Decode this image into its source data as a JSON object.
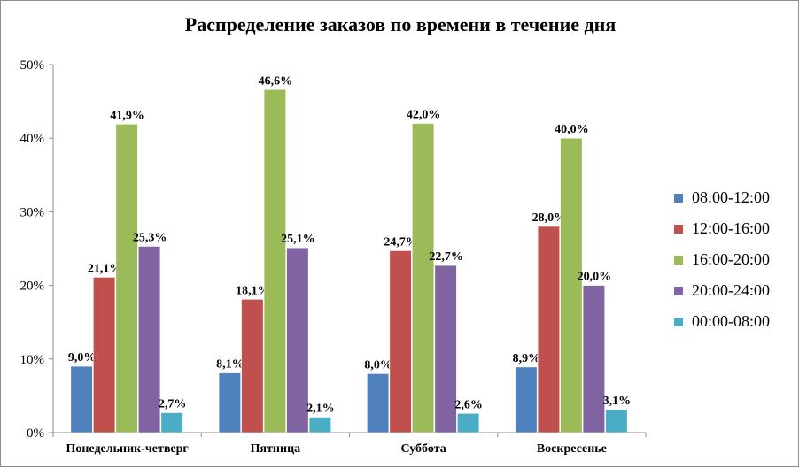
{
  "chart_data": {
    "type": "bar",
    "title": "Распределение заказов по времени в течение дня",
    "xlabel": "",
    "ylabel": "",
    "categories": [
      "Понедельник-четверг",
      "Пятница",
      "Суббота",
      "Воскресенье"
    ],
    "series": [
      {
        "name": "08:00-12:00",
        "color": "#4f81bd",
        "values": [
          9.0,
          8.1,
          8.0,
          8.9
        ],
        "labels": [
          "9,0%",
          "8,1%",
          "8,0%",
          "8,9%"
        ]
      },
      {
        "name": "12:00-16:00",
        "color": "#c0504d",
        "values": [
          21.1,
          18.1,
          24.7,
          28.0
        ],
        "labels": [
          "21,1%",
          "18,1%",
          "24,7%",
          "28,0%"
        ]
      },
      {
        "name": "16:00-20:00",
        "color": "#9bbb59",
        "values": [
          41.9,
          46.6,
          42.0,
          40.0
        ],
        "labels": [
          "41,9%",
          "46,6%",
          "42,0%",
          "40,0%"
        ]
      },
      {
        "name": "20:00-24:00",
        "color": "#8064a2",
        "values": [
          25.3,
          25.1,
          22.7,
          20.0
        ],
        "labels": [
          "25,3%",
          "25,1%",
          "22,7%",
          "20,0%"
        ]
      },
      {
        "name": "00:00-08:00",
        "color": "#4bacc6",
        "values": [
          2.7,
          2.1,
          2.6,
          3.1
        ],
        "labels": [
          "2,7%",
          "2,1%",
          "2,6%",
          "3,1%"
        ]
      }
    ],
    "ylim": [
      0,
      50
    ],
    "yticks": [
      0,
      10,
      20,
      30,
      40,
      50
    ],
    "ytick_labels": [
      "0%",
      "10%",
      "20%",
      "30%",
      "40%",
      "50%"
    ],
    "grid": false,
    "legend": "right"
  }
}
